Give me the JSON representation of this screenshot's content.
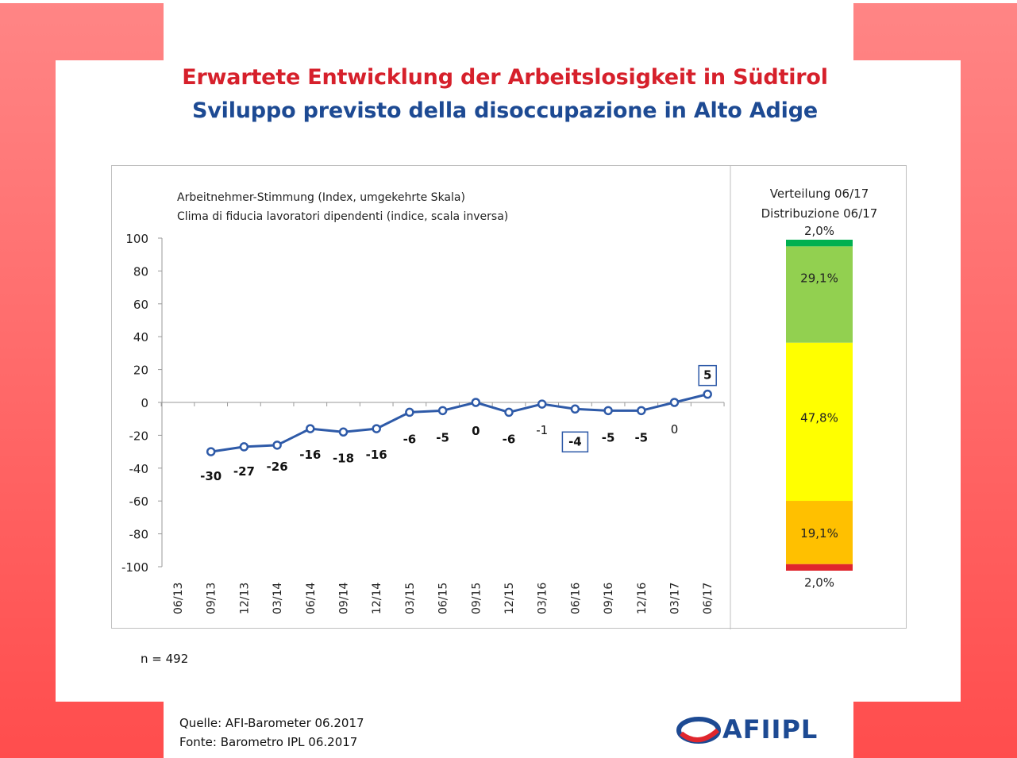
{
  "title_de": "Erwartete Entwicklung der Arbeitslosigkeit in Südtirol",
  "title_it": "Sviluppo previsto della disoccupazione in Alto Adige",
  "source_de": "Quelle: AFI-Barometer 06.2017",
  "source_it": "Fonte: Barometro IPL 06.2017",
  "sample_size": "n =  492",
  "logo_text": "AFIIPL",
  "colors": {
    "frame": "#ff5252",
    "line": "#2e5aa8",
    "title_de": "#d6202b",
    "title_it": "#1d4a93"
  },
  "chart_data": [
    {
      "type": "line",
      "title": "Arbeitnehmer-Stimmung  (Index, umgekehrte Skala)",
      "subtitle": "Clima di fiducia lavoratori dipendenti  (indice, scala inversa)",
      "categories": [
        "06/13",
        "09/13",
        "12/13",
        "03/14",
        "06/14",
        "09/14",
        "12/14",
        "03/15",
        "06/15",
        "09/15",
        "12/15",
        "03/16",
        "06/16",
        "09/16",
        "12/16",
        "03/17",
        "06/17"
      ],
      "series": [
        {
          "values": [
            null,
            -30,
            -27,
            -26,
            -16,
            -18,
            -16,
            -6,
            -5,
            0,
            -6,
            -1,
            -4,
            -5,
            -5,
            0,
            5
          ]
        }
      ],
      "data_labels": [
        "",
        "-30",
        "-27",
        "-26",
        "-16",
        "-18",
        "-16",
        "-6",
        "-5",
        "0",
        "-6",
        "-1",
        "-4",
        "-5",
        "-5",
        "0",
        "5"
      ],
      "boxed_labels": [
        "06/16",
        "06/17"
      ],
      "bold_labels": [
        "09/13",
        "12/13",
        "03/14",
        "06/14",
        "09/14",
        "12/14",
        "03/15",
        "06/15",
        "09/15",
        "12/15",
        "06/16",
        "09/16",
        "12/16",
        "06/17"
      ],
      "yticks": [
        "100",
        "80",
        "60",
        "40",
        "20",
        "0",
        "-20",
        "-40",
        "-60",
        "-80",
        "-100"
      ],
      "ylim": [
        -100,
        100
      ],
      "grid": false
    },
    {
      "type": "bar",
      "title": "Verteilung 06/17",
      "subtitle": "Distribuzione 06/17",
      "stacked": true,
      "segments": [
        {
          "value": 2.0,
          "label": "2,0%",
          "color": "#e0262d"
        },
        {
          "value": 19.1,
          "label": "19,1%",
          "color": "#ffc000"
        },
        {
          "value": 47.8,
          "label": "47,8%",
          "color": "#ffff00"
        },
        {
          "value": 29.1,
          "label": "29,1%",
          "color": "#92d050"
        },
        {
          "value": 2.0,
          "label": "2,0%",
          "color": "#00b050"
        }
      ]
    }
  ]
}
